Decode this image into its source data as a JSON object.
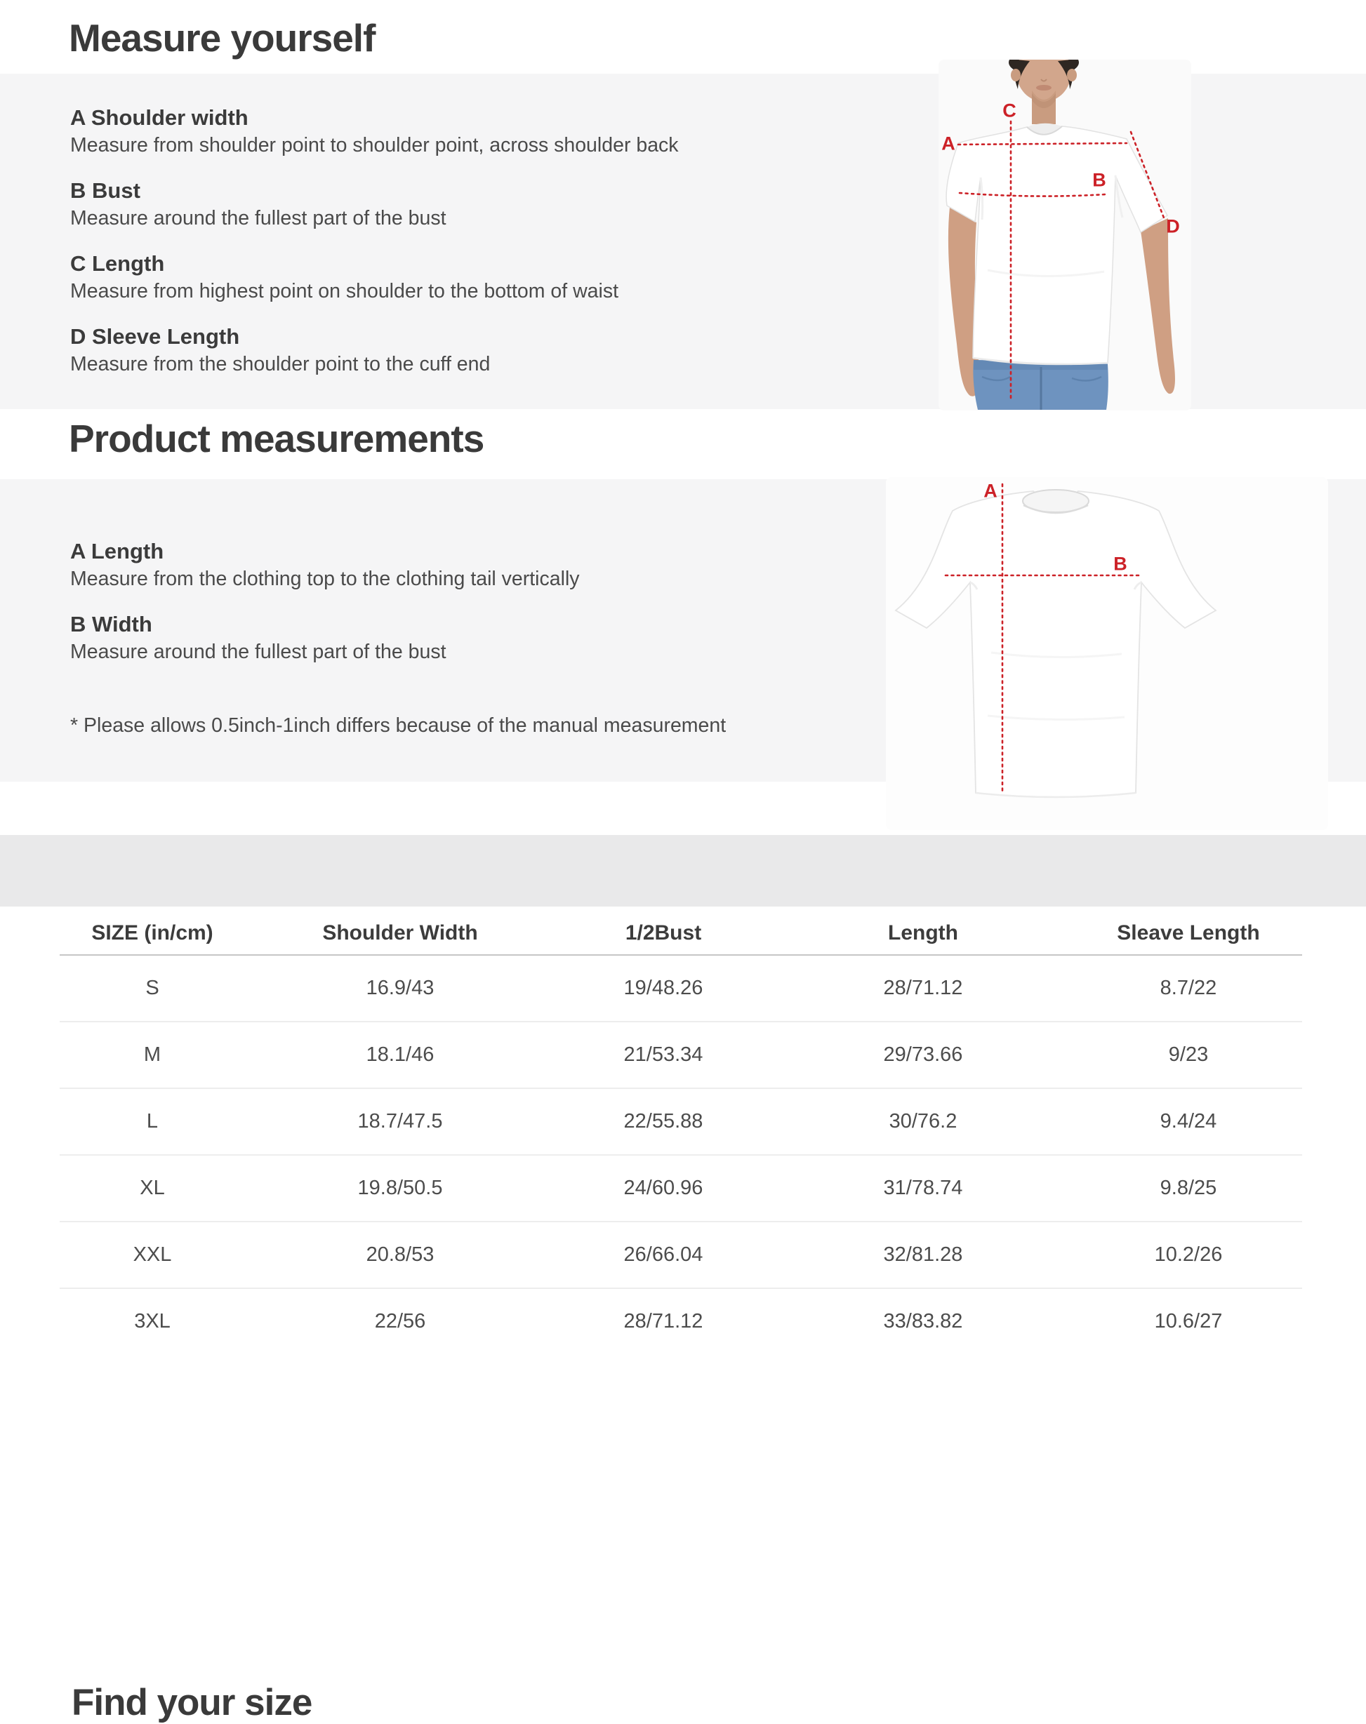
{
  "accent_red": "#cc2127",
  "panel_gray": "#f5f5f6",
  "band_gray": "#e9e9ea",
  "measure_yourself": {
    "title": "Measure yourself",
    "items": [
      {
        "label": "A Shoulder width",
        "desc": "Measure from shoulder point to shoulder point, across shoulder back"
      },
      {
        "label": "B Bust",
        "desc": "Measure around the fullest part of the bust"
      },
      {
        "label": "C Length",
        "desc": "Measure from highest point on shoulder to the bottom of waist"
      },
      {
        "label": "D Sleeve Length",
        "desc": "Measure from the shoulder point to the cuff end"
      }
    ],
    "figure_labels": {
      "a": "A",
      "b": "B",
      "c": "C",
      "d": "D"
    }
  },
  "product_measurements": {
    "title": "Product measurements",
    "items": [
      {
        "label": "A Length",
        "desc": "Measure from the clothing top to the clothing tail vertically"
      },
      {
        "label": "B Width",
        "desc": "Measure around the fullest part of the bust"
      }
    ],
    "note": "* Please allows 0.5inch-1inch differs because of the  manual measurement",
    "figure_labels": {
      "a": "A",
      "b": "B"
    }
  },
  "find_your_size": {
    "title": "Find your size",
    "table": {
      "columns": [
        "SIZE (in/cm)",
        "Shoulder Width",
        "1/2Bust",
        "Length",
        "Sleave Length"
      ],
      "rows": [
        [
          "S",
          "16.9/43",
          "19/48.26",
          "28/71.12",
          "8.7/22"
        ],
        [
          "M",
          "18.1/46",
          "21/53.34",
          "29/73.66",
          "9/23"
        ],
        [
          "L",
          "18.7/47.5",
          "22/55.88",
          "30/76.2",
          "9.4/24"
        ],
        [
          "XL",
          "19.8/50.5",
          "24/60.96",
          "31/78.74",
          "9.8/25"
        ],
        [
          "XXL",
          "20.8/53",
          "26/66.04",
          "32/81.28",
          "10.2/26"
        ],
        [
          "3XL",
          "22/56",
          "28/71.12",
          "33/83.82",
          "10.6/27"
        ]
      ]
    }
  }
}
